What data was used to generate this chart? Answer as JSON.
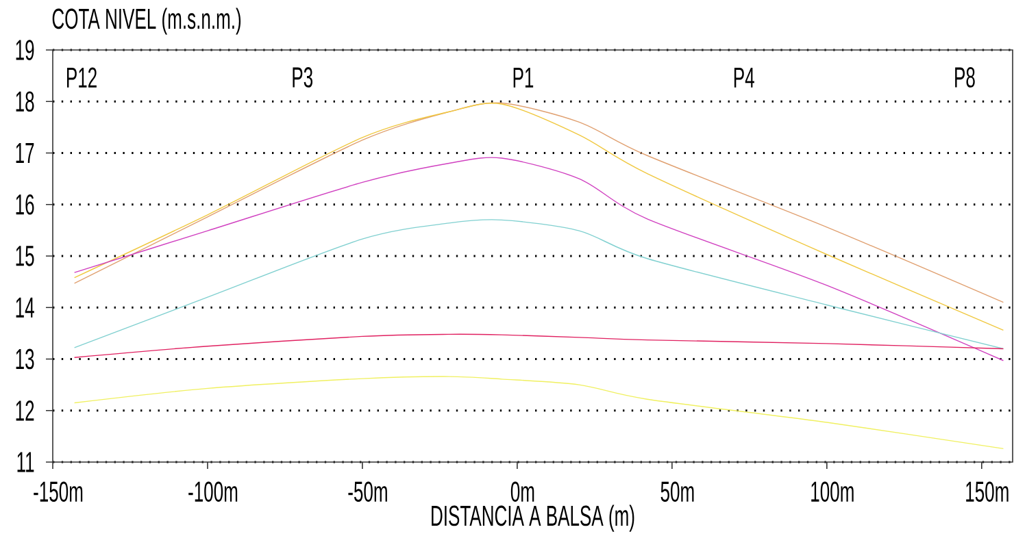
{
  "chart_data": {
    "type": "line",
    "ylabel": "COTA NIVEL (m.s.n.m.)",
    "xlabel": "DISTANCIA A BALSA (m)",
    "x": [
      -143,
      -100,
      -50,
      -22,
      -5,
      20,
      42,
      100,
      157
    ],
    "series": [
      {
        "color": "#e0a070",
        "values": [
          14.47,
          15.76,
          17.25,
          17.8,
          17.97,
          17.6,
          16.95,
          15.56,
          14.1
        ]
      },
      {
        "color": "#f0c840",
        "values": [
          14.58,
          15.8,
          17.3,
          17.8,
          17.95,
          17.35,
          16.6,
          15.03,
          13.56
        ]
      },
      {
        "color": "#d040c0",
        "values": [
          14.68,
          15.49,
          16.43,
          16.8,
          16.9,
          16.5,
          15.72,
          14.43,
          12.97
        ]
      },
      {
        "color": "#80d0d0",
        "values": [
          13.22,
          14.2,
          15.33,
          15.64,
          15.7,
          15.49,
          14.95,
          14.05,
          13.2
        ]
      },
      {
        "color": "#e02060",
        "values": [
          13.03,
          13.25,
          13.44,
          13.48,
          13.47,
          13.42,
          13.37,
          13.3,
          13.2
        ]
      },
      {
        "color": "#f0f060",
        "values": [
          12.15,
          12.43,
          12.62,
          12.66,
          12.61,
          12.5,
          12.22,
          11.77,
          11.26
        ]
      }
    ],
    "xlim": [
      -150,
      160
    ],
    "ylim": [
      11,
      19
    ],
    "xticks": [
      {
        "value": -150,
        "label": "-150m"
      },
      {
        "value": -100,
        "label": "-100m"
      },
      {
        "value": -50,
        "label": "-50m"
      },
      {
        "value": 0,
        "label": "0m"
      },
      {
        "value": 50,
        "label": "50m"
      },
      {
        "value": 100,
        "label": "100m"
      },
      {
        "value": 150,
        "label": "150m"
      }
    ],
    "yticks": [
      11,
      12,
      13,
      14,
      15,
      16,
      17,
      18,
      19
    ],
    "grid": "y",
    "annotations": [
      "P12",
      "P3",
      "P1",
      "P4",
      "P8"
    ]
  }
}
